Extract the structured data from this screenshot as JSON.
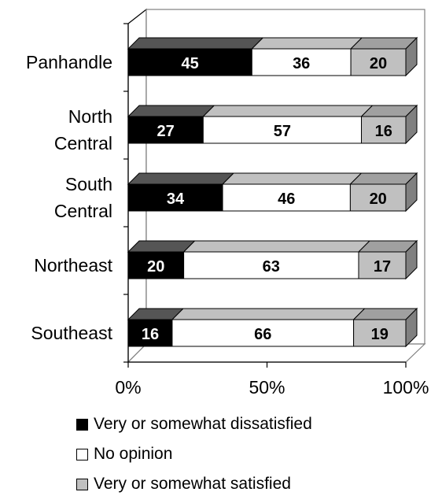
{
  "chart_data": {
    "type": "bar",
    "stacked": true,
    "percent": true,
    "orientation": "horizontal",
    "three_d": true,
    "categories": [
      [
        "Panhandle"
      ],
      [
        "North",
        "Central"
      ],
      [
        "South",
        "Central"
      ],
      [
        "Northeast"
      ],
      [
        "Southeast"
      ]
    ],
    "series": [
      {
        "name": "Very or somewhat dissatisfied",
        "values": [
          45,
          27,
          34,
          20,
          16
        ],
        "color": "#000000"
      },
      {
        "name": "No opinion",
        "values": [
          36,
          57,
          46,
          63,
          66
        ],
        "color": "#ffffff"
      },
      {
        "name": "Very or somewhat satisfied",
        "values": [
          20,
          16,
          20,
          17,
          19
        ],
        "color": "#c0c0c0"
      }
    ],
    "x_ticks": [
      "0%",
      "50%",
      "100%"
    ],
    "xlim": [
      0,
      100
    ],
    "legend_position": "bottom",
    "grid": false
  }
}
